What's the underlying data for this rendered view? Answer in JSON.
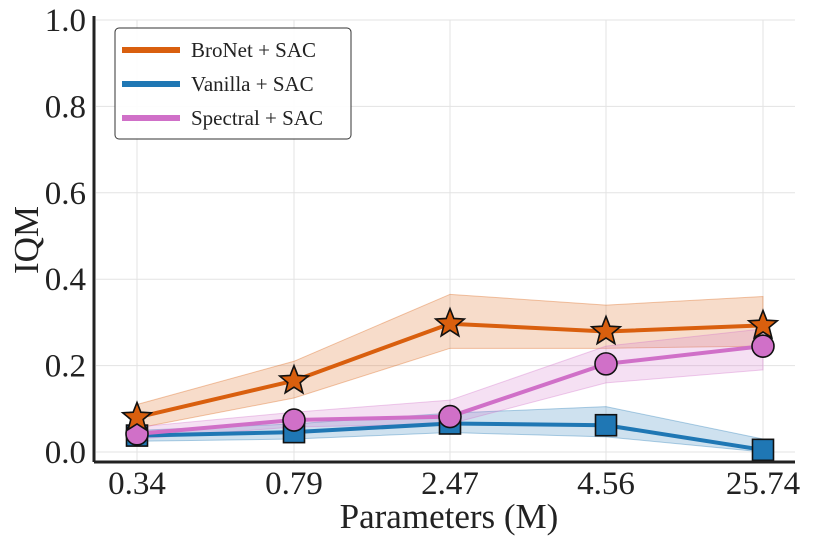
{
  "chart_data": {
    "type": "line",
    "title": "",
    "xlabel": "Parameters (M)",
    "ylabel": "IQM",
    "categories": [
      "0.34",
      "0.79",
      "2.47",
      "4.56",
      "25.74"
    ],
    "ylim": [
      0,
      1.0
    ],
    "yticks": [
      "0.0",
      "0.2",
      "0.4",
      "0.6",
      "0.8",
      "1.0"
    ],
    "grid": true,
    "legend_position": "top-left",
    "series": [
      {
        "name": "BroNet + SAC",
        "color": "#d95f0e",
        "marker": "star",
        "values": [
          0.08,
          0.165,
          0.297,
          0.279,
          0.293
        ],
        "lower": [
          0.055,
          0.125,
          0.24,
          0.24,
          0.245
        ],
        "upper": [
          0.11,
          0.21,
          0.365,
          0.34,
          0.36
        ]
      },
      {
        "name": "Vanilla + SAC",
        "color": "#1f77b4",
        "marker": "square",
        "values": [
          0.038,
          0.046,
          0.066,
          0.062,
          0.005
        ],
        "lower": [
          0.025,
          0.03,
          0.045,
          0.035,
          0.0
        ],
        "upper": [
          0.05,
          0.065,
          0.09,
          0.105,
          0.03
        ]
      },
      {
        "name": "Spectral + SAC",
        "color": "#d070c8",
        "marker": "circle",
        "values": [
          0.042,
          0.074,
          0.082,
          0.204,
          0.245
        ],
        "lower": [
          0.03,
          0.058,
          0.065,
          0.16,
          0.19
        ],
        "upper": [
          0.058,
          0.092,
          0.12,
          0.245,
          0.285
        ]
      }
    ]
  }
}
